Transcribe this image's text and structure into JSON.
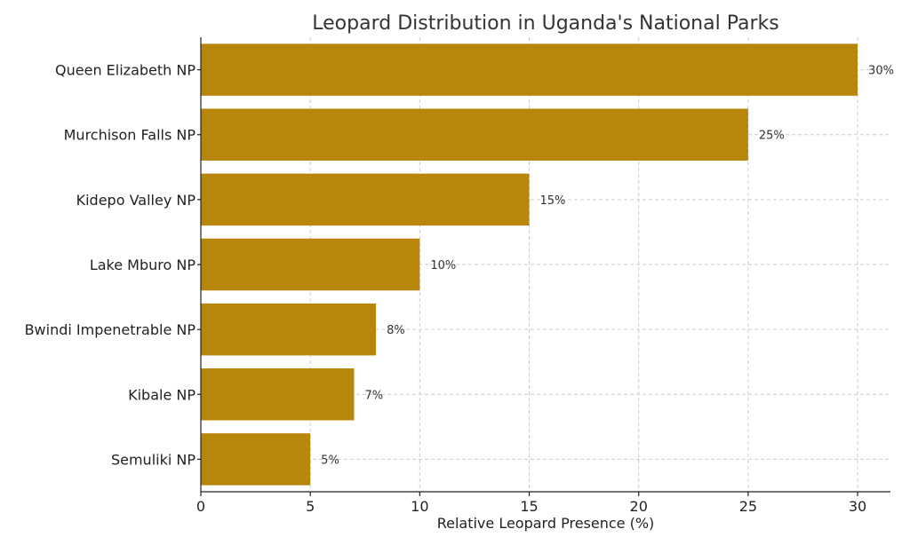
{
  "chart_data": {
    "type": "bar",
    "orientation": "horizontal",
    "title": "Leopard Distribution in Uganda's National Parks",
    "xlabel": "Relative Leopard Presence (%)",
    "ylabel": "",
    "categories": [
      "Queen Elizabeth NP",
      "Murchison Falls NP",
      "Kidepo Valley NP",
      "Lake Mburo NP",
      "Bwindi Impenetrable NP",
      "Kibale NP",
      "Semuliki NP"
    ],
    "values": [
      30,
      25,
      15,
      10,
      8,
      7,
      5
    ],
    "data_labels": [
      "30%",
      "25%",
      "15%",
      "10%",
      "8%",
      "7%",
      "5%"
    ],
    "xlim": [
      0,
      31.5
    ],
    "xticks": [
      0,
      5,
      10,
      15,
      20,
      25,
      30
    ],
    "xtick_labels": [
      "0",
      "5",
      "10",
      "15",
      "20",
      "25",
      "30"
    ],
    "grid": true,
    "bar_color": "#b8860b"
  }
}
